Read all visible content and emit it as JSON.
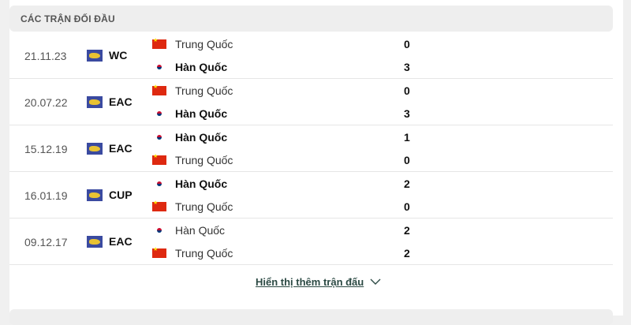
{
  "section_title": "CÁC TRẬN ĐỐI ĐẦU",
  "matches": [
    {
      "date": "21.11.23",
      "competition": "WC",
      "home": {
        "name": "Trung Quốc",
        "flag": "china",
        "score": "0",
        "winner": false
      },
      "away": {
        "name": "Hàn Quốc",
        "flag": "korea",
        "score": "3",
        "winner": true
      }
    },
    {
      "date": "20.07.22",
      "competition": "EAC",
      "home": {
        "name": "Trung Quốc",
        "flag": "china",
        "score": "0",
        "winner": false
      },
      "away": {
        "name": "Hàn Quốc",
        "flag": "korea",
        "score": "3",
        "winner": true
      }
    },
    {
      "date": "15.12.19",
      "competition": "EAC",
      "home": {
        "name": "Hàn Quốc",
        "flag": "korea",
        "score": "1",
        "winner": true
      },
      "away": {
        "name": "Trung Quốc",
        "flag": "china",
        "score": "0",
        "winner": false
      }
    },
    {
      "date": "16.01.19",
      "competition": "CUP",
      "home": {
        "name": "Hàn Quốc",
        "flag": "korea",
        "score": "2",
        "winner": true
      },
      "away": {
        "name": "Trung Quốc",
        "flag": "china",
        "score": "0",
        "winner": false
      }
    },
    {
      "date": "09.12.17",
      "competition": "EAC",
      "home": {
        "name": "Hàn Quốc",
        "flag": "korea",
        "score": "2",
        "winner": false
      },
      "away": {
        "name": "Trung Quốc",
        "flag": "china",
        "score": "2",
        "winner": false
      }
    }
  ],
  "show_more_label": "Hiển thị thêm trận đấu",
  "show_more_icon": "chevron-down-icon"
}
